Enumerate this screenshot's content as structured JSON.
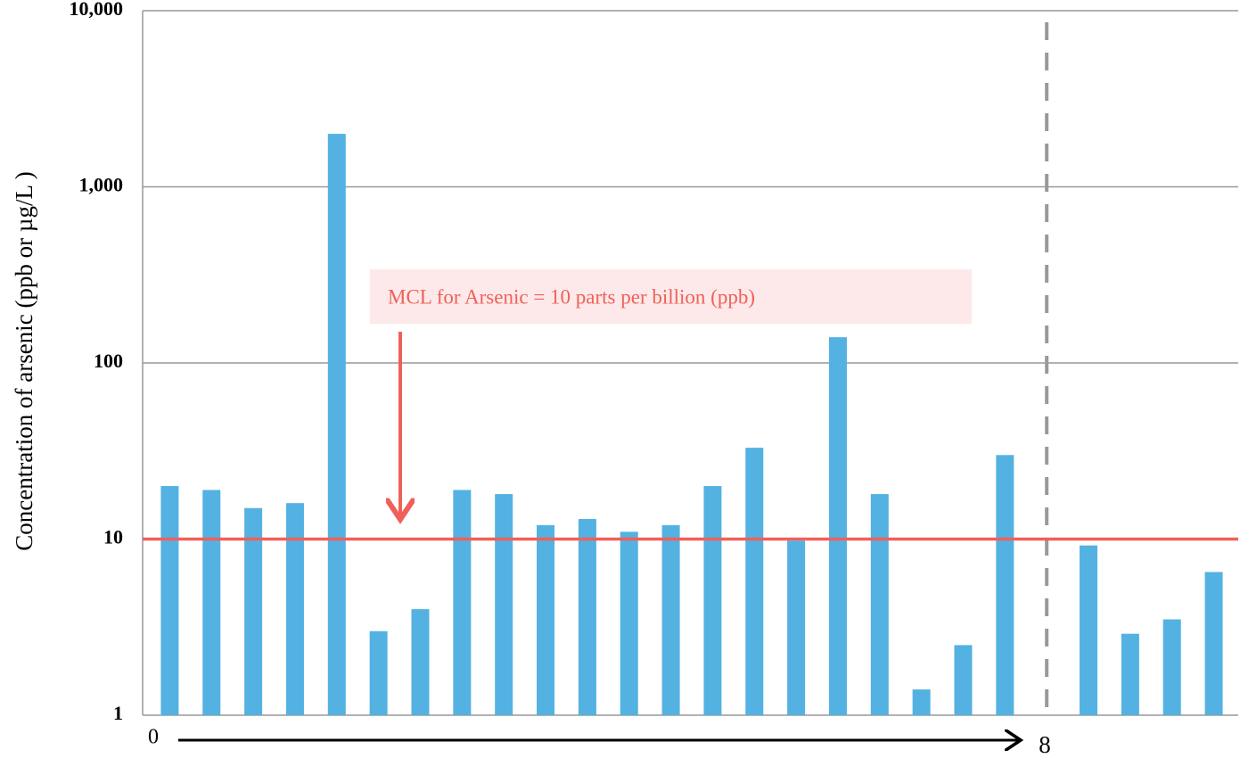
{
  "chart_data": {
    "type": "bar",
    "y_label": "Concentration of arsenic (ppb or µg/L )",
    "values": [
      20,
      19,
      15,
      16,
      2000,
      3.0,
      4.0,
      19,
      18,
      12,
      13,
      11,
      12,
      20,
      33,
      9.8,
      140,
      18,
      1.4,
      2.5,
      30,
      null,
      9.2,
      2.9,
      3.5,
      6.5
    ],
    "color": "#53b2e2",
    "ylim": [
      1,
      10000
    ],
    "log_scale": true,
    "grid": true,
    "yticks": [
      {
        "value": 1,
        "label": "1"
      },
      {
        "value": 10,
        "label": "10"
      },
      {
        "value": 100,
        "label": "100"
      },
      {
        "value": 1000,
        "label": "1,000"
      },
      {
        "value": 10000,
        "label": "10,000"
      }
    ],
    "threshold": 10,
    "threshold_color": "#f0605a",
    "annotation": "MCL for Arsenic = 10 parts per billion  (ppb)",
    "x_start_label": "0",
    "x_end_label": "8"
  }
}
